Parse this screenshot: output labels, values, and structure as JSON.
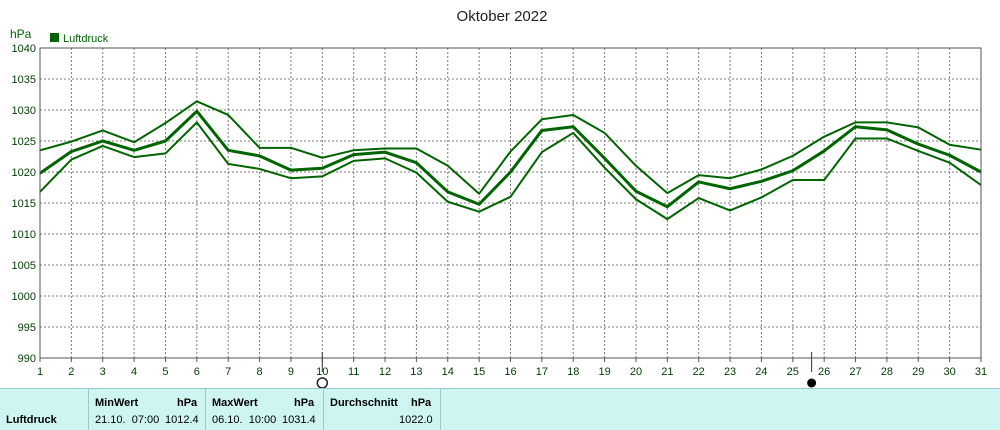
{
  "chart_data": {
    "type": "line",
    "title": "Oktober 2022",
    "ylabel": "hPa",
    "ylim": [
      990,
      1040
    ],
    "yticks": [
      990,
      995,
      1000,
      1005,
      1010,
      1015,
      1020,
      1025,
      1030,
      1035,
      1040
    ],
    "x": [
      1,
      2,
      3,
      4,
      5,
      6,
      7,
      8,
      9,
      10,
      11,
      12,
      13,
      14,
      15,
      16,
      17,
      18,
      19,
      20,
      21,
      22,
      23,
      24,
      25,
      26,
      27,
      28,
      29,
      30,
      31
    ],
    "grid": true,
    "legend": "top-left",
    "legend_label": "Luftdruck",
    "series": [
      {
        "name": "Luftdruck",
        "role": "mean",
        "values": [
          1019.8,
          1023.3,
          1025.0,
          1023.5,
          1025.0,
          1029.8,
          1023.5,
          1022.6,
          1020.3,
          1020.6,
          1022.8,
          1023.2,
          1021.5,
          1016.8,
          1014.8,
          1020.0,
          1026.7,
          1027.3,
          1022.2,
          1016.9,
          1014.4,
          1018.4,
          1017.3,
          1018.5,
          1020.2,
          1023.4,
          1027.3,
          1026.8,
          1024.5,
          1022.7,
          1020.0
        ]
      },
      {
        "name": "",
        "role": "max",
        "values": [
          1023.5,
          1024.9,
          1026.7,
          1024.8,
          1027.9,
          1031.4,
          1029.2,
          1023.9,
          1023.9,
          1022.3,
          1023.5,
          1023.8,
          1023.8,
          1021.0,
          1016.5,
          1023.3,
          1028.5,
          1029.2,
          1026.3,
          1021.0,
          1016.6,
          1019.5,
          1019.0,
          1020.4,
          1022.6,
          1025.7,
          1028.0,
          1028.0,
          1027.2,
          1024.4,
          1023.6
        ]
      },
      {
        "name": "",
        "role": "min",
        "values": [
          1016.8,
          1022.0,
          1024.2,
          1022.4,
          1023.0,
          1028.0,
          1021.3,
          1020.5,
          1019.0,
          1019.3,
          1021.8,
          1022.2,
          1019.9,
          1015.2,
          1013.6,
          1016.0,
          1023.2,
          1026.3,
          1020.7,
          1015.6,
          1012.4,
          1015.8,
          1013.8,
          1015.9,
          1018.7,
          1018.7,
          1025.4,
          1025.4,
          1023.4,
          1021.5,
          1017.9
        ]
      }
    ],
    "markers": [
      {
        "x": 10,
        "symbol": "open-circle"
      },
      {
        "x": 25.6,
        "symbol": "filled-circle"
      }
    ],
    "colors": {
      "line": "#006400",
      "legend_box": "#006400",
      "grid": "#7a7a7a"
    }
  },
  "summary": {
    "row_label": "Luftdruck",
    "min": {
      "label": "MinWert",
      "unit": "hPa",
      "when": "21.10.  07:00",
      "value": "1012.4"
    },
    "max": {
      "label": "MaxWert",
      "unit": "hPa",
      "when": "06.10.  10:00",
      "value": "1031.4"
    },
    "avg": {
      "label": "Durchschnitt",
      "unit": "hPa",
      "value": "1022.0"
    }
  }
}
